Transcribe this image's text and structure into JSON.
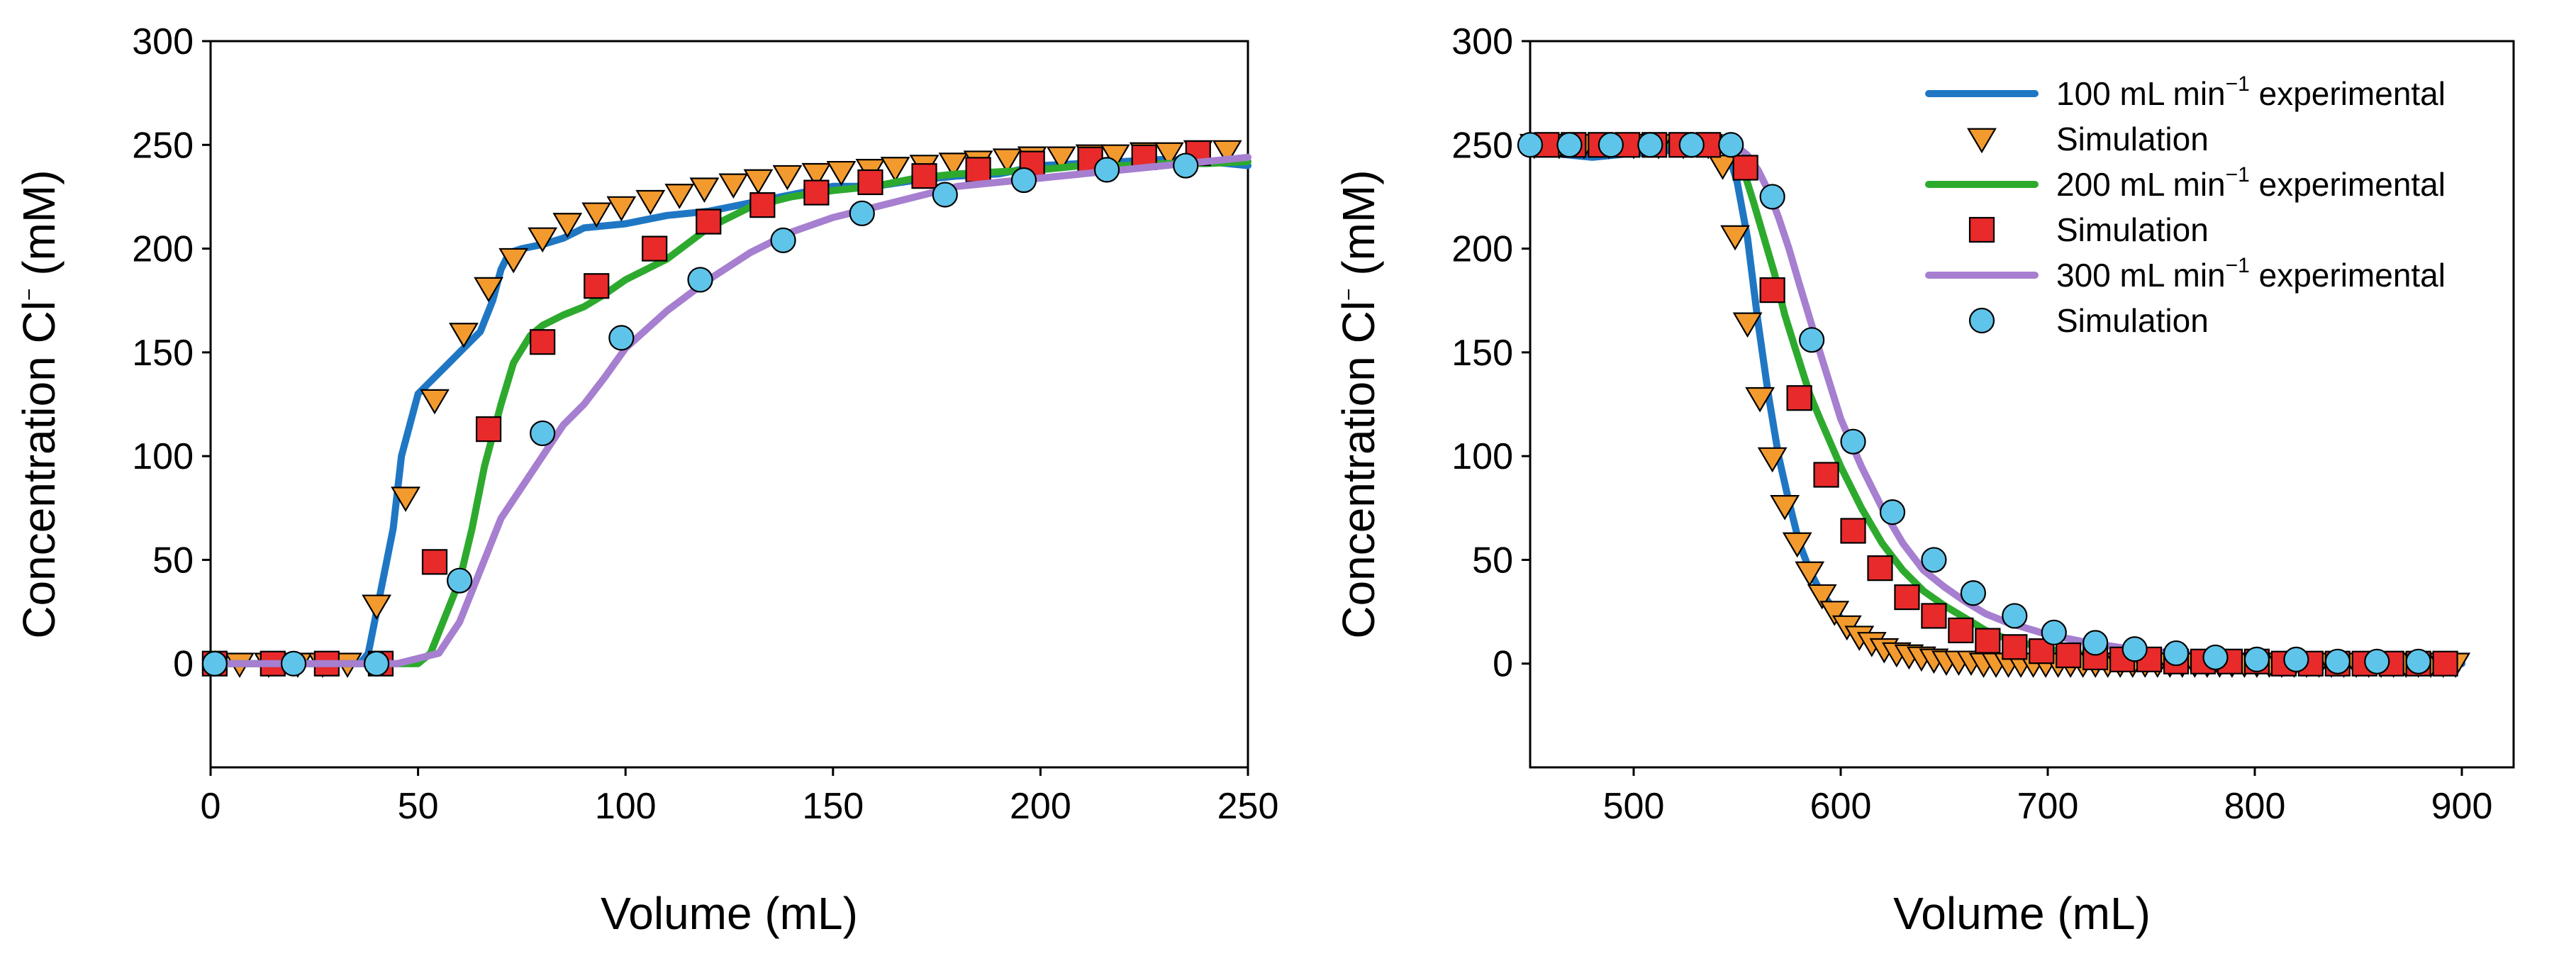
{
  "chart_data": [
    {
      "type": "line",
      "xlabel": "Volume (mL)",
      "ylabel": {
        "main": "Concentration Cl",
        "superscript": "−",
        "units": " (mM)"
      },
      "xlim": [
        0,
        250
      ],
      "ylim": [
        -50,
        300
      ],
      "xticks": [
        0,
        50,
        100,
        150,
        200,
        250
      ],
      "yticks": [
        0,
        50,
        100,
        150,
        200,
        250,
        300
      ],
      "legend": null,
      "series": [
        {
          "name": "100 mL min-1 experimental",
          "kind": "line",
          "color": "#1f77c4",
          "x": [
            0,
            36,
            38,
            40,
            44,
            46,
            50,
            55,
            60,
            65,
            68,
            70,
            72,
            75,
            80,
            85,
            90,
            100,
            110,
            120,
            130,
            140,
            150,
            160,
            170,
            180,
            190,
            200,
            210,
            220,
            230,
            240,
            250
          ],
          "y": [
            0,
            0,
            5,
            25,
            65,
            100,
            130,
            140,
            150,
            160,
            175,
            190,
            198,
            200,
            202,
            205,
            210,
            212,
            216,
            218,
            222,
            226,
            230,
            230,
            233,
            235,
            236,
            240,
            241,
            242,
            243,
            242,
            240
          ]
        },
        {
          "name": "Simulation (100)",
          "kind": "triangle",
          "color": "#f39a2e",
          "x": [
            7,
            14,
            21,
            27,
            33,
            40,
            47,
            54,
            61,
            67,
            73,
            80,
            86,
            93,
            99,
            106,
            113,
            119,
            126,
            132,
            139,
            146,
            152,
            159,
            165,
            172,
            179,
            185,
            192,
            198,
            205,
            212,
            218,
            225,
            231,
            238,
            245
          ],
          "y": [
            0,
            0,
            0,
            0,
            0,
            28,
            80,
            127,
            159,
            181,
            195,
            205,
            212,
            217,
            220,
            223,
            226,
            229,
            231,
            233,
            235,
            236,
            237,
            238,
            239,
            240,
            241,
            242,
            243,
            244,
            244,
            245,
            245,
            246,
            246,
            247,
            247
          ]
        },
        {
          "name": "200 mL min-1 experimental",
          "kind": "line",
          "color": "#2daa2d",
          "x": [
            0,
            50,
            53,
            56,
            60,
            63,
            66,
            70,
            73,
            77,
            80,
            85,
            90,
            95,
            100,
            110,
            120,
            130,
            140,
            150,
            160,
            170,
            180,
            190,
            200,
            210,
            220,
            230,
            240,
            250
          ],
          "y": [
            0,
            0,
            5,
            20,
            40,
            65,
            95,
            125,
            145,
            158,
            163,
            168,
            172,
            178,
            185,
            195,
            210,
            220,
            225,
            228,
            230,
            234,
            236,
            237,
            238,
            240,
            240,
            241,
            241,
            242
          ]
        },
        {
          "name": "Simulation (200)",
          "kind": "square",
          "color": "#e82a2a",
          "x": [
            1,
            15,
            28,
            41,
            54,
            67,
            80,
            93,
            107,
            120,
            133,
            146,
            159,
            172,
            185,
            198,
            212,
            225,
            238
          ],
          "y": [
            0,
            0,
            0,
            0,
            49,
            113,
            155,
            182,
            200,
            213,
            221,
            227,
            232,
            235,
            238,
            241,
            243,
            244,
            246
          ]
        },
        {
          "name": "300 mL min-1 experimental",
          "kind": "line",
          "color": "#a67fd0",
          "x": [
            0,
            45,
            55,
            60,
            65,
            70,
            75,
            80,
            85,
            90,
            95,
            100,
            110,
            120,
            130,
            140,
            150,
            160,
            170,
            180,
            190,
            200,
            210,
            220,
            230,
            240,
            250
          ],
          "y": [
            0,
            0,
            5,
            20,
            45,
            70,
            85,
            100,
            115,
            125,
            138,
            152,
            170,
            185,
            198,
            208,
            215,
            220,
            225,
            230,
            232,
            234,
            236,
            238,
            240,
            242,
            244
          ]
        },
        {
          "name": "Simulation (300)",
          "kind": "circle",
          "color": "#5fc4ea",
          "x": [
            1,
            20,
            40,
            60,
            80,
            99,
            118,
            138,
            157,
            177,
            196,
            216,
            235
          ],
          "y": [
            0,
            0,
            0,
            40,
            111,
            157,
            185,
            204,
            217,
            226,
            233,
            238,
            240
          ]
        }
      ]
    },
    {
      "type": "line",
      "xlabel": "Volume (mL)",
      "ylabel": {
        "main": "Concentration Cl",
        "superscript": "−",
        "units": " (mM)"
      },
      "xlim": [
        450,
        925
      ],
      "ylim": [
        -50,
        300
      ],
      "xticks": [
        500,
        600,
        700,
        800,
        900
      ],
      "yticks": [
        0,
        50,
        100,
        150,
        200,
        250,
        300
      ],
      "legend": {
        "position": "top-right",
        "entries": [
          {
            "kind": "line",
            "color": "#1f77c4",
            "pre": "100 mL min",
            "sup": "−1",
            "post": " experimental"
          },
          {
            "kind": "triangle",
            "color": "#f39a2e",
            "pre": "Simulation",
            "sup": "",
            "post": ""
          },
          {
            "kind": "line",
            "color": "#2daa2d",
            "pre": "200 mL min",
            "sup": "−1",
            "post": " experimental"
          },
          {
            "kind": "square",
            "color": "#e82a2a",
            "pre": "Simulation",
            "sup": "",
            "post": ""
          },
          {
            "kind": "line",
            "color": "#a67fd0",
            "pre": "300 mL min",
            "sup": "−1",
            "post": " experimental"
          },
          {
            "kind": "circle",
            "color": "#5fc4ea",
            "pre": "Simulation",
            "sup": "",
            "post": ""
          }
        ]
      },
      "series": [
        {
          "name": "300 mL min-1 experimental",
          "kind": "line",
          "color": "#a67fd0",
          "x": [
            450,
            540,
            550,
            555,
            560,
            565,
            570,
            575,
            580,
            590,
            600,
            610,
            620,
            630,
            640,
            650,
            660,
            670,
            680,
            700,
            720,
            740,
            760,
            780,
            800,
            820,
            840,
            860,
            880,
            900
          ],
          "y": [
            250,
            250,
            249,
            245,
            238,
            228,
            215,
            200,
            183,
            150,
            118,
            95,
            75,
            58,
            45,
            37,
            30,
            24,
            20,
            14,
            10,
            7,
            5,
            4,
            3,
            2,
            2,
            1,
            1,
            1
          ]
        },
        {
          "name": "200 mL min-1 experimental",
          "kind": "line",
          "color": "#2daa2d",
          "x": [
            450,
            540,
            548,
            553,
            558,
            563,
            568,
            573,
            578,
            585,
            590,
            600,
            610,
            620,
            630,
            640,
            650,
            660,
            670,
            680,
            700,
            720,
            740,
            760,
            780,
            800,
            820,
            840,
            860,
            880,
            900
          ],
          "y": [
            250,
            250,
            248,
            238,
            222,
            205,
            188,
            168,
            152,
            130,
            118,
            95,
            75,
            58,
            45,
            35,
            28,
            22,
            16,
            12,
            7,
            4,
            3,
            2,
            1,
            1,
            1,
            0,
            0,
            0,
            0
          ]
        },
        {
          "name": "100 mL min-1 experimental",
          "kind": "line",
          "color": "#1f77c4",
          "x": [
            450,
            460,
            470,
            480,
            490,
            500,
            510,
            520,
            530,
            540,
            546,
            550,
            555,
            560,
            565,
            570,
            575,
            580,
            585,
            590,
            600,
            610,
            620,
            630,
            640,
            660,
            680,
            700,
            750,
            800,
            850,
            900
          ],
          "y": [
            247,
            246,
            245,
            244,
            245,
            246,
            246,
            248,
            249,
            250,
            245,
            232,
            205,
            165,
            130,
            100,
            78,
            58,
            45,
            35,
            22,
            14,
            9,
            6,
            4,
            2,
            1,
            0,
            0,
            0,
            0,
            0
          ]
        },
        {
          "name": "Simulation (100)",
          "kind": "triangle",
          "color": "#f39a2e",
          "x": [
            452,
            464,
            476,
            488,
            500,
            512,
            524,
            536,
            543,
            549,
            555,
            561,
            567,
            573,
            579,
            585,
            591,
            597,
            603,
            609,
            615,
            621,
            627,
            633,
            639,
            645,
            651,
            657,
            663,
            669,
            675,
            681,
            687,
            693,
            699,
            705,
            711,
            717,
            723,
            729,
            735,
            741,
            747,
            753,
            759,
            765,
            771,
            777,
            783,
            789,
            795,
            801,
            807,
            813,
            819,
            825,
            831,
            837,
            843,
            849,
            855,
            861,
            867,
            873,
            879,
            885,
            891,
            897
          ],
          "y": [
            250,
            250,
            250,
            250,
            250,
            250,
            250,
            250,
            240,
            206,
            164,
            128,
            99,
            76,
            58,
            44,
            33,
            25,
            18,
            13,
            10,
            7,
            5,
            4,
            3,
            2,
            1,
            1,
            1,
            0,
            0,
            0,
            0,
            0,
            0,
            0,
            0,
            0,
            0,
            0,
            0,
            0,
            0,
            0,
            0,
            0,
            0,
            0,
            0,
            0,
            0,
            0,
            0,
            0,
            0,
            0,
            0,
            0,
            0,
            0,
            0,
            0,
            0,
            0,
            0,
            0,
            0,
            0
          ]
        },
        {
          "name": "Simulation (200)",
          "kind": "square",
          "color": "#e82a2a",
          "x": [
            458,
            471,
            484,
            497,
            510,
            523,
            536,
            554,
            567,
            580,
            593,
            606,
            619,
            632,
            645,
            658,
            671,
            684,
            697,
            710,
            723,
            736,
            749,
            762,
            775,
            788,
            801,
            814,
            827,
            840,
            853,
            866,
            879,
            892
          ],
          "y": [
            250,
            250,
            250,
            250,
            250,
            250,
            250,
            239,
            180,
            128,
            91,
            64,
            46,
            32,
            23,
            16,
            11,
            8,
            6,
            4,
            3,
            2,
            2,
            1,
            1,
            1,
            1,
            0,
            0,
            0,
            0,
            0,
            0,
            0
          ]
        },
        {
          "name": "Simulation (300)",
          "kind": "circle",
          "color": "#5fc4ea",
          "x": [
            450,
            469,
            489,
            508,
            528,
            547,
            567,
            586,
            606,
            625,
            645,
            664,
            684,
            703,
            723,
            742,
            762,
            781,
            801,
            820,
            840,
            859,
            879
          ],
          "y": [
            250,
            250,
            250,
            250,
            250,
            250,
            225,
            156,
            107,
            73,
            50,
            34,
            23,
            15,
            10,
            7,
            5,
            3,
            2,
            2,
            1,
            1,
            1
          ]
        }
      ]
    }
  ]
}
